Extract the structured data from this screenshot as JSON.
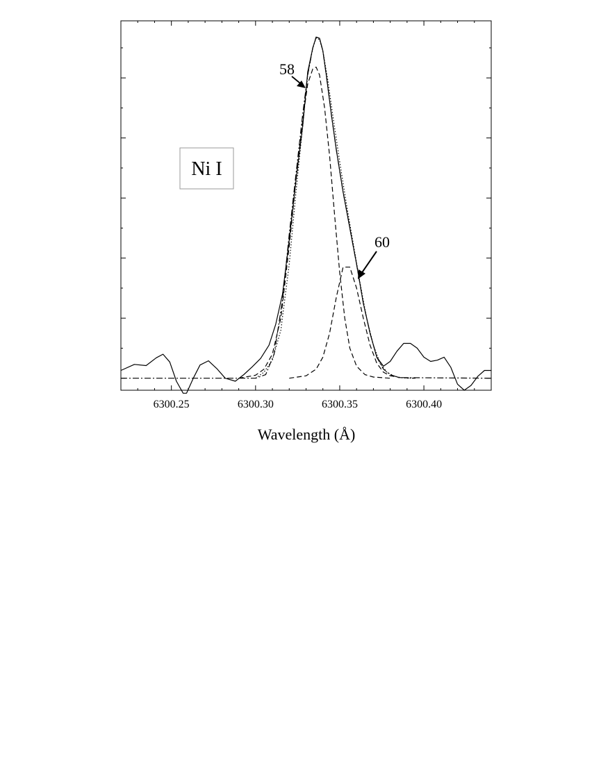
{
  "chart_data": {
    "type": "line",
    "xlabel": "Wavelength (Å)",
    "ylabel": "",
    "xlim": [
      6300.22,
      6300.44
    ],
    "ylim": [
      -0.02,
      0.595
    ],
    "xticks": [
      6300.25,
      6300.3,
      6300.35,
      6300.4
    ],
    "xtick_labels": [
      "6300.25",
      "6300.30",
      "6300.35",
      "6300.40"
    ],
    "yticks": [
      0,
      0.1,
      0.2,
      0.3,
      0.4,
      0.5
    ],
    "grid": false,
    "legend": "none",
    "species_label": "Ni I",
    "annotations": [
      {
        "text": "58",
        "x": 6300.337,
        "y": 0.48
      },
      {
        "text": "60",
        "x": 6300.359,
        "y": 0.17
      }
    ],
    "series": [
      {
        "style": "solid",
        "x": [
          6300.22,
          6300.228,
          6300.235,
          6300.241,
          6300.245,
          6300.249,
          6300.253,
          6300.257,
          6300.259,
          6300.263,
          6300.267,
          6300.272,
          6300.277,
          6300.282,
          6300.288,
          6300.293,
          6300.298,
          6300.303,
          6300.308,
          6300.312,
          6300.316,
          6300.32,
          6300.324,
          6300.328,
          6300.331,
          6300.334,
          6300.336,
          6300.338,
          6300.34,
          6300.342,
          6300.345,
          6300.348,
          6300.352,
          6300.356,
          6300.36,
          6300.364,
          6300.368,
          6300.372,
          6300.376,
          6300.38,
          6300.384,
          6300.388,
          6300.392,
          6300.396,
          6300.4,
          6300.404,
          6300.408,
          6300.412,
          6300.416,
          6300.42,
          6300.424,
          6300.428,
          6300.432,
          6300.436,
          6300.44
        ],
        "y": [
          0.013,
          0.023,
          0.021,
          0.034,
          0.04,
          0.027,
          -0.005,
          -0.025,
          -0.025,
          0.0,
          0.022,
          0.029,
          0.016,
          0.0,
          -0.005,
          0.006,
          0.019,
          0.033,
          0.055,
          0.09,
          0.14,
          0.23,
          0.33,
          0.42,
          0.51,
          0.55,
          0.568,
          0.566,
          0.545,
          0.505,
          0.44,
          0.38,
          0.31,
          0.25,
          0.19,
          0.125,
          0.075,
          0.035,
          0.02,
          0.028,
          0.045,
          0.058,
          0.058,
          0.05,
          0.035,
          0.028,
          0.03,
          0.035,
          0.018,
          -0.01,
          -0.02,
          -0.012,
          0.003,
          0.013,
          0.013
        ]
      },
      {
        "style": "dotted",
        "x": [
          6300.3,
          6300.305,
          6300.31,
          6300.315,
          6300.32,
          6300.324,
          6300.328,
          6300.331,
          6300.334,
          6300.336,
          6300.338,
          6300.34,
          6300.343,
          6300.346,
          6300.35,
          6300.354,
          6300.358,
          6300.362,
          6300.366,
          6300.37,
          6300.374,
          6300.378,
          6300.382,
          6300.386,
          6300.39,
          6300.395
        ],
        "y": [
          0.0,
          0.01,
          0.03,
          0.08,
          0.19,
          0.31,
          0.42,
          0.505,
          0.55,
          0.566,
          0.564,
          0.545,
          0.495,
          0.435,
          0.36,
          0.29,
          0.225,
          0.16,
          0.1,
          0.055,
          0.025,
          0.01,
          0.004,
          0.001,
          0.0,
          0.0
        ]
      },
      {
        "style": "dashed",
        "x": [
          6300.29,
          6300.3,
          6300.305,
          6300.31,
          6300.315,
          6300.32,
          6300.324,
          6300.328,
          6300.331,
          6300.334,
          6300.336,
          6300.338,
          6300.341,
          6300.344,
          6300.347,
          6300.35,
          6300.353,
          6300.356,
          6300.36,
          6300.365,
          6300.37,
          6300.38
        ],
        "y": [
          0.0,
          0.005,
          0.015,
          0.04,
          0.1,
          0.22,
          0.33,
          0.43,
          0.49,
          0.515,
          0.518,
          0.505,
          0.45,
          0.37,
          0.27,
          0.175,
          0.1,
          0.05,
          0.02,
          0.006,
          0.002,
          0.0
        ]
      },
      {
        "style": "dashed",
        "x": [
          6300.32,
          6300.33,
          6300.336,
          6300.34,
          6300.344,
          6300.348,
          6300.352,
          6300.356,
          6300.36,
          6300.364,
          6300.368,
          6300.372,
          6300.376,
          6300.38,
          6300.386,
          6300.395
        ],
        "y": [
          0.0,
          0.004,
          0.015,
          0.035,
          0.075,
          0.135,
          0.185,
          0.185,
          0.15,
          0.1,
          0.055,
          0.025,
          0.01,
          0.004,
          0.001,
          0.0
        ]
      },
      {
        "style": "dashdot",
        "x": [
          6300.22,
          6300.3,
          6300.306,
          6300.311,
          6300.316,
          6300.32,
          6300.324,
          6300.328,
          6300.331,
          6300.334,
          6300.336,
          6300.338,
          6300.34,
          6300.342,
          6300.345,
          6300.348,
          6300.352,
          6300.356,
          6300.36,
          6300.364,
          6300.368,
          6300.372,
          6300.376,
          6300.38,
          6300.385,
          6300.44
        ],
        "y": [
          0.0,
          0.0,
          0.006,
          0.04,
          0.13,
          0.24,
          0.34,
          0.44,
          0.505,
          0.55,
          0.568,
          0.566,
          0.545,
          0.505,
          0.44,
          0.38,
          0.31,
          0.25,
          0.19,
          0.125,
          0.075,
          0.035,
          0.015,
          0.006,
          0.001,
          0.0
        ]
      }
    ]
  }
}
